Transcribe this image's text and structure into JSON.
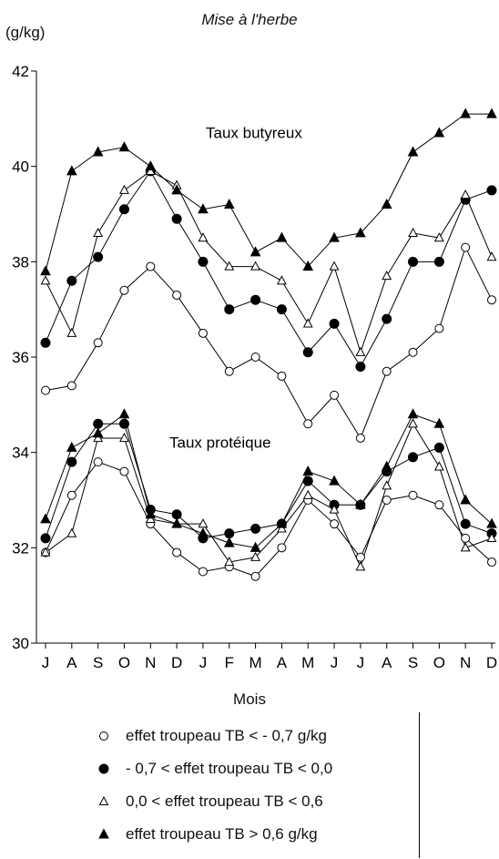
{
  "header": {
    "subtitle": "Mise à l'herbe",
    "ylabel": "(g/kg)"
  },
  "xlabel": "Mois",
  "annotations": {
    "butyreux": "Taux butyreux",
    "proteique": "Taux protéique"
  },
  "colors": {
    "ink": "#000000",
    "background": "#ffffff"
  },
  "legend": [
    {
      "label": "effet troupeau TB < - 0,7 g/kg",
      "marker": "circle-open"
    },
    {
      "label": "- 0,7 < effet troupeau TB < 0,0",
      "marker": "circle-filled"
    },
    {
      "label": "0,0 < effet troupeau TB < 0,6",
      "marker": "triangle-open"
    },
    {
      "label": "effet troupeau TB > 0,6 g/kg",
      "marker": "triangle-filled"
    }
  ],
  "chart_data": {
    "type": "line",
    "categories": [
      "J",
      "A",
      "S",
      "O",
      "N",
      "D",
      "J",
      "F",
      "M",
      "A",
      "M",
      "J",
      "J",
      "A",
      "S",
      "O",
      "N",
      "D"
    ],
    "ylim": [
      30,
      42
    ],
    "yticks": [
      30,
      32,
      34,
      36,
      38,
      40,
      42
    ],
    "xlabel": "Mois",
    "ylabel": "(g/kg)",
    "grid": false,
    "series": [
      {
        "name": "effet troupeau TB < - 0,7 g/kg",
        "marker": "circle-open",
        "group": "Taux butyreux",
        "values": [
          35.3,
          35.4,
          36.3,
          37.4,
          37.9,
          37.3,
          36.5,
          35.7,
          36.0,
          35.6,
          34.6,
          35.2,
          34.3,
          35.7,
          36.1,
          36.6,
          38.3,
          37.2
        ]
      },
      {
        "name": "- 0,7 < effet troupeau TB < 0,0",
        "marker": "circle-filled",
        "group": "Taux butyreux",
        "values": [
          36.3,
          37.6,
          38.1,
          39.1,
          39.9,
          38.9,
          38.0,
          37.0,
          37.2,
          37.0,
          36.1,
          36.7,
          35.8,
          36.8,
          38.0,
          38.0,
          39.3,
          39.5
        ]
      },
      {
        "name": "0,0 < effet troupeau TB < 0,6",
        "marker": "triangle-open",
        "group": "Taux butyreux",
        "values": [
          37.6,
          36.5,
          38.6,
          39.5,
          39.9,
          39.6,
          38.5,
          37.9,
          37.9,
          37.6,
          36.7,
          37.9,
          36.1,
          37.7,
          38.6,
          38.5,
          39.4,
          38.1
        ]
      },
      {
        "name": "effet troupeau TB > 0,6 g/kg",
        "marker": "triangle-filled",
        "group": "Taux butyreux",
        "values": [
          37.8,
          39.9,
          40.3,
          40.4,
          40.0,
          39.5,
          39.1,
          39.2,
          38.2,
          38.5,
          37.9,
          38.5,
          38.6,
          39.2,
          40.3,
          40.7,
          41.1,
          41.1
        ]
      },
      {
        "name": "effet troupeau TB < - 0,7 g/kg",
        "marker": "circle-open",
        "group": "Taux protéique",
        "values": [
          31.9,
          33.1,
          33.8,
          33.6,
          32.5,
          31.9,
          31.5,
          31.6,
          31.4,
          32.0,
          33.0,
          32.5,
          31.8,
          33.0,
          33.1,
          32.9,
          32.2,
          31.7
        ]
      },
      {
        "name": "- 0,7 < effet troupeau TB < 0,0",
        "marker": "circle-filled",
        "group": "Taux protéique",
        "values": [
          32.2,
          33.8,
          34.6,
          34.6,
          32.8,
          32.7,
          32.2,
          32.3,
          32.4,
          32.5,
          33.4,
          32.9,
          32.9,
          33.6,
          33.9,
          34.1,
          32.5,
          32.3
        ]
      },
      {
        "name": "0,0 < effet troupeau TB < 0,6",
        "marker": "triangle-open",
        "group": "Taux protéique",
        "values": [
          31.9,
          32.3,
          34.3,
          34.3,
          32.6,
          32.5,
          32.5,
          31.7,
          31.8,
          32.4,
          33.1,
          32.8,
          31.6,
          33.3,
          34.6,
          33.7,
          32.0,
          32.2
        ]
      },
      {
        "name": "effet troupeau TB > 0,6 g/kg",
        "marker": "triangle-filled",
        "group": "Taux protéique",
        "values": [
          32.6,
          34.1,
          34.4,
          34.8,
          32.7,
          32.5,
          32.3,
          32.1,
          32.0,
          32.5,
          33.6,
          33.4,
          32.9,
          33.7,
          34.8,
          34.6,
          33.0,
          32.5
        ]
      }
    ]
  }
}
